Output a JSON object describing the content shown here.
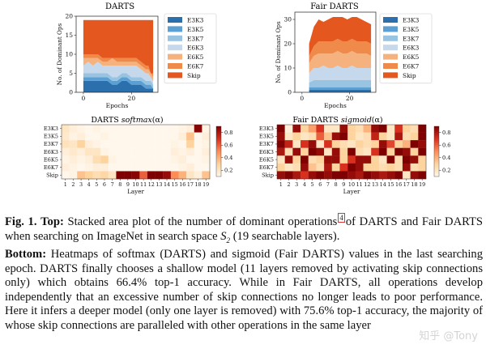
{
  "figure": {
    "panels": {
      "darts_area": {
        "title": "DARTS"
      },
      "fair_area": {
        "title": "Fair DARTS"
      },
      "darts_heat": {
        "title_prefix": "DARTS",
        "title_fn": "softmax",
        "title_arg": "(α)"
      },
      "fair_heat": {
        "title_prefix": "Fair DARTS",
        "title_fn": "sigmoid",
        "title_arg": "(α)"
      }
    },
    "colorbar_ticks": [
      "0.8",
      "0.6",
      "0.4",
      "0.2"
    ]
  },
  "chart_data": [
    {
      "id": "darts_area",
      "type": "area",
      "title": "DARTS",
      "xlabel": "Epochs",
      "ylabel": "No. of Dominant Ops",
      "xlim": [
        -3,
        31
      ],
      "ylim": [
        0,
        20
      ],
      "xticks": [
        0,
        20
      ],
      "yticks": [
        0,
        5,
        10,
        15,
        20
      ],
      "x": [
        0,
        2,
        4,
        6,
        8,
        10,
        12,
        14,
        16,
        18,
        20,
        22,
        24,
        26,
        27,
        28,
        29
      ],
      "series": [
        {
          "name": "E3K3",
          "color": "#2c6fad",
          "values": [
            3,
            3,
            3,
            3,
            3,
            3,
            2,
            2,
            3,
            3,
            2,
            2,
            2,
            1,
            1,
            1,
            1
          ]
        },
        {
          "name": "E3K5",
          "color": "#5b9fd3",
          "values": [
            1,
            1,
            1,
            1,
            1,
            1,
            1,
            1,
            1,
            1,
            1,
            1,
            1,
            1,
            1,
            1,
            0
          ]
        },
        {
          "name": "E3K7",
          "color": "#98c4e2",
          "values": [
            1,
            1,
            1,
            1,
            1,
            1,
            1,
            1,
            1,
            1,
            1,
            1,
            1,
            1,
            1,
            1,
            1
          ]
        },
        {
          "name": "E6K3",
          "color": "#c6d9ec",
          "values": [
            2,
            3,
            2,
            3,
            2,
            2,
            3,
            3,
            2,
            2,
            3,
            3,
            2,
            2,
            2,
            1,
            1
          ]
        },
        {
          "name": "E6K5",
          "color": "#f6b27e",
          "values": [
            2,
            1,
            2,
            1,
            1,
            1,
            2,
            1,
            1,
            1,
            1,
            1,
            1,
            1,
            1,
            1,
            1
          ]
        },
        {
          "name": "E6K7",
          "color": "#f08a4b",
          "values": [
            1,
            1,
            1,
            1,
            1,
            1,
            0,
            1,
            1,
            1,
            1,
            1,
            1,
            1,
            1,
            0,
            1
          ]
        },
        {
          "name": "Skip",
          "color": "#e4581f",
          "values": [
            9,
            9,
            9,
            9,
            10,
            10,
            10,
            10,
            10,
            10,
            10,
            10,
            11,
            12,
            12,
            14,
            14
          ]
        }
      ],
      "legend": "right"
    },
    {
      "id": "fair_area",
      "type": "area",
      "title": "Fair DARTS",
      "xlabel": "Epochs",
      "ylabel": "No. of Dominant Ops",
      "xlim": [
        -3,
        31
      ],
      "ylim": [
        0,
        33
      ],
      "xticks": [
        0,
        20
      ],
      "yticks": [
        0,
        10,
        20,
        30
      ],
      "x": [
        3,
        5,
        7,
        9,
        11,
        13,
        15,
        17,
        19,
        21,
        23,
        25,
        27,
        29
      ],
      "series": [
        {
          "name": "E3K3",
          "color": "#2c6fad",
          "values": [
            1,
            1,
            1,
            1,
            1,
            1,
            1,
            1,
            1,
            1,
            1,
            1,
            1,
            1
          ]
        },
        {
          "name": "E3K5",
          "color": "#5b9fd3",
          "values": [
            1,
            1,
            1,
            1,
            1,
            1,
            1,
            1,
            1,
            1,
            1,
            1,
            1,
            1
          ]
        },
        {
          "name": "E3K7",
          "color": "#98c4e2",
          "values": [
            2,
            3,
            3,
            3,
            3,
            3,
            3,
            3,
            3,
            3,
            3,
            3,
            3,
            3
          ]
        },
        {
          "name": "E6K3",
          "color": "#c6d9ec",
          "values": [
            4,
            5,
            5,
            6,
            5,
            5,
            6,
            5,
            5,
            6,
            5,
            5,
            5,
            5
          ]
        },
        {
          "name": "E6K5",
          "color": "#f6b27e",
          "values": [
            4,
            5,
            6,
            5,
            6,
            6,
            6,
            6,
            6,
            6,
            6,
            6,
            6,
            5
          ]
        },
        {
          "name": "E6K7",
          "color": "#f08a4b",
          "values": [
            3,
            4,
            5,
            5,
            5,
            5,
            5,
            5,
            5,
            5,
            5,
            5,
            5,
            5
          ]
        },
        {
          "name": "Skip",
          "color": "#e4581f",
          "values": [
            5,
            8,
            9,
            8,
            9,
            10,
            9,
            10,
            9,
            9,
            10,
            9,
            8,
            8
          ]
        }
      ],
      "legend": "right"
    },
    {
      "id": "darts_heat",
      "type": "heatmap",
      "title": "DARTS softmax(α)",
      "xlabel": "Layer",
      "ylabel": "",
      "rows": [
        "E3K3",
        "E3K5",
        "E3K7",
        "E6K3",
        "E6K5",
        "E6K7",
        "Skip"
      ],
      "cols": [
        "1",
        "2",
        "3",
        "4",
        "5",
        "6",
        "7",
        "8",
        "9",
        "10",
        "11",
        "12",
        "13",
        "14",
        "15",
        "16",
        "17",
        "18",
        "19"
      ],
      "vmin": 0.1,
      "vmax": 0.9,
      "colorbar_ticks": [
        0.2,
        0.4,
        0.6,
        0.8
      ],
      "values": [
        [
          0.2,
          0.15,
          0.12,
          0.1,
          0.12,
          0.1,
          0.08,
          0.05,
          0.05,
          0.08,
          0.05,
          0.05,
          0.06,
          0.08,
          0.1,
          0.12,
          0.15,
          0.88,
          0.12
        ],
        [
          0.18,
          0.12,
          0.15,
          0.1,
          0.1,
          0.12,
          0.06,
          0.05,
          0.05,
          0.06,
          0.05,
          0.05,
          0.06,
          0.08,
          0.1,
          0.15,
          0.35,
          0.08,
          0.15
        ],
        [
          0.22,
          0.2,
          0.3,
          0.15,
          0.12,
          0.1,
          0.08,
          0.05,
          0.05,
          0.05,
          0.05,
          0.05,
          0.05,
          0.08,
          0.12,
          0.1,
          0.3,
          0.05,
          0.12
        ],
        [
          0.15,
          0.18,
          0.15,
          0.2,
          0.2,
          0.12,
          0.1,
          0.05,
          0.05,
          0.05,
          0.05,
          0.05,
          0.05,
          0.1,
          0.15,
          0.12,
          0.15,
          0.05,
          0.15
        ],
        [
          0.12,
          0.15,
          0.12,
          0.15,
          0.25,
          0.3,
          0.12,
          0.05,
          0.05,
          0.05,
          0.05,
          0.05,
          0.05,
          0.1,
          0.12,
          0.15,
          0.1,
          0.05,
          0.12
        ],
        [
          0.15,
          0.12,
          0.1,
          0.12,
          0.15,
          0.15,
          0.1,
          0.05,
          0.05,
          0.05,
          0.05,
          0.05,
          0.05,
          0.08,
          0.1,
          0.12,
          0.15,
          0.05,
          0.1
        ],
        [
          0.1,
          0.12,
          0.35,
          0.3,
          0.25,
          0.28,
          0.2,
          0.9,
          0.9,
          0.88,
          0.6,
          0.9,
          0.9,
          0.85,
          0.5,
          0.4,
          0.2,
          0.15,
          0.35
        ]
      ]
    },
    {
      "id": "fair_heat",
      "type": "heatmap",
      "title": "Fair DARTS sigmoid(α)",
      "xlabel": "Layer",
      "ylabel": "",
      "rows": [
        "E3K3",
        "E3K5",
        "E3K7",
        "E6K3",
        "E6K5",
        "E6K7",
        "Skip"
      ],
      "cols": [
        "1",
        "2",
        "3",
        "4",
        "5",
        "6",
        "7",
        "8",
        "9",
        "10",
        "11",
        "12",
        "13",
        "14",
        "15",
        "16",
        "17",
        "18",
        "19"
      ],
      "vmin": 0.1,
      "vmax": 0.9,
      "colorbar_ticks": [
        0.2,
        0.4,
        0.6,
        0.8
      ],
      "values": [
        [
          0.9,
          0.15,
          0.85,
          0.3,
          0.45,
          0.7,
          0.2,
          0.2,
          0.85,
          0.3,
          0.25,
          0.4,
          0.85,
          0.9,
          0.2,
          0.7,
          0.3,
          0.25,
          0.9
        ],
        [
          0.85,
          0.2,
          0.3,
          0.2,
          0.25,
          0.6,
          0.35,
          0.85,
          0.9,
          0.3,
          0.2,
          0.25,
          0.75,
          0.3,
          0.2,
          0.8,
          0.25,
          0.3,
          0.9
        ],
        [
          0.9,
          0.75,
          0.2,
          0.7,
          0.85,
          0.2,
          0.7,
          0.3,
          0.25,
          0.2,
          0.3,
          0.25,
          0.3,
          0.85,
          0.65,
          0.3,
          0.4,
          0.9,
          0.85
        ],
        [
          0.8,
          0.25,
          0.85,
          0.3,
          0.9,
          0.85,
          0.2,
          0.85,
          0.3,
          0.9,
          0.25,
          0.2,
          0.7,
          0.9,
          0.3,
          0.9,
          0.85,
          0.3,
          0.9
        ],
        [
          0.2,
          0.85,
          0.3,
          0.9,
          0.25,
          0.3,
          0.85,
          0.85,
          0.3,
          0.7,
          0.85,
          0.85,
          0.3,
          0.2,
          0.9,
          0.25,
          0.9,
          0.85,
          0.3
        ],
        [
          0.3,
          0.2,
          0.25,
          0.85,
          0.35,
          0.25,
          0.8,
          0.3,
          0.7,
          0.9,
          0.85,
          0.3,
          0.3,
          0.25,
          0.3,
          0.25,
          0.85,
          0.25,
          0.3
        ],
        [
          0.85,
          0.9,
          0.8,
          0.7,
          0.85,
          0.9,
          0.85,
          0.9,
          0.9,
          0.85,
          0.8,
          0.9,
          0.85,
          0.8,
          0.85,
          0.9,
          0.2,
          0.85,
          0.9
        ]
      ]
    }
  ],
  "caption": {
    "label": "Fig. 1.",
    "top_heading": "Top:",
    "top_text": "Stacked area plot of the number of dominant operations",
    "footnote_mark": "4",
    "top_text_2": "of DARTS and Fair DARTS when searching on ImageNet in search space",
    "space_symbol": "S",
    "space_subscript": "2",
    "top_text_3": "(19 searchable layers).",
    "bottom_heading": "Bottom:",
    "bottom_text": "Heatmaps of softmax (DARTS) and sigmoid (Fair DARTS) values in the last searching epoch. DARTS finally chooses a shallow model (11 layers removed by activating skip connections only) which obtains 66.4% top-1 accuracy. While in Fair DARTS, all operations develop independently that an excessive number of skip connections no longer leads to poor performance. Here it infers a deeper model (only one layer is removed) with 75.6% top-1 accuracy, the majority of whose skip connections are paralleled with other operations in the same layer"
  },
  "watermark": "知乎 @Tony"
}
